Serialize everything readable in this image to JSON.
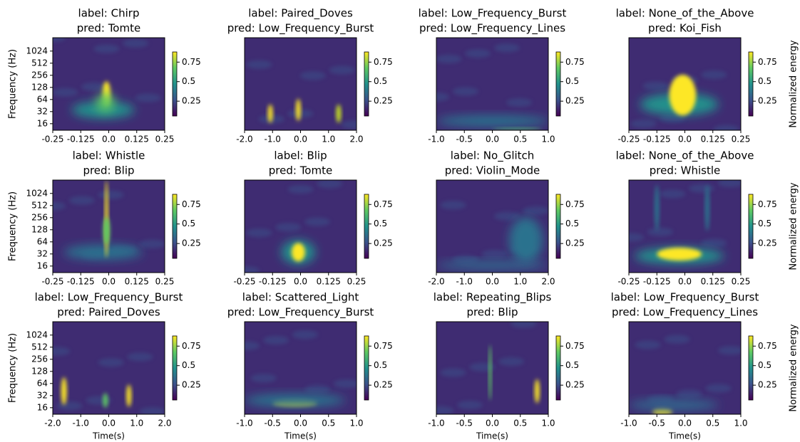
{
  "chart_data": [
    {
      "type": "heatmap",
      "title": [
        "label: Chirp",
        "pred: Tomte"
      ],
      "ylabel": "Frequency (Hz)",
      "log_y": true,
      "ylim": [
        11,
        2200
      ],
      "yticks": [
        16,
        32,
        64,
        128,
        256,
        512,
        1024
      ],
      "xlim": [
        -0.25,
        0.25
      ],
      "xticks": [
        -0.25,
        -0.125,
        {
          "value": 0,
          "label": "0.0"
        },
        0.125,
        0.25
      ],
      "colorbar": {
        "lim": [
          0.06,
          0.88
        ],
        "ticks": [
          0.25,
          0.5,
          0.75
        ]
      }
    },
    {
      "type": "heatmap",
      "title": [
        "label: Paired_Doves",
        "pred: Low_Frequency_Burst"
      ],
      "xlim": [
        -2,
        2
      ],
      "xticks": [
        {
          "value": -2,
          "label": "-2.0"
        },
        {
          "value": -1,
          "label": "-1.0"
        },
        {
          "value": 0,
          "label": "0.0"
        },
        {
          "value": 1,
          "label": "1.0"
        },
        {
          "value": 2,
          "label": "2.0"
        }
      ],
      "colorbar": {
        "lim": [
          0.06,
          0.88
        ],
        "ticks": [
          0.25,
          0.5,
          0.75
        ]
      }
    },
    {
      "type": "heatmap",
      "title": [
        "label: Low_Frequency_Burst",
        "pred: Low_Frequency_Lines"
      ],
      "xlim": [
        -1,
        1
      ],
      "xticks": [
        {
          "value": -1,
          "label": "-1.0"
        },
        -0.5,
        {
          "value": 0,
          "label": "0.0"
        },
        0.5,
        {
          "value": 1,
          "label": "1.0"
        }
      ],
      "colorbar": {
        "lim": [
          0.06,
          0.88
        ],
        "ticks": [
          0.25,
          0.5,
          0.75
        ]
      }
    },
    {
      "type": "heatmap",
      "title": [
        "label: None_of_the_Above",
        "pred: Koi_Fish"
      ],
      "xlim": [
        -0.25,
        0.25
      ],
      "xticks": [
        -0.25,
        -0.125,
        {
          "value": 0,
          "label": "0.0"
        },
        0.125,
        0.25
      ],
      "colorbar": {
        "lim": [
          0.06,
          0.88
        ],
        "ticks": [
          0.25,
          0.5,
          0.75
        ],
        "label": "Normalized energy"
      }
    },
    {
      "type": "heatmap",
      "title": [
        "label: Whistle",
        "pred: Blip"
      ],
      "ylabel": "Frequency (Hz)",
      "log_y": true,
      "ylim": [
        11,
        2200
      ],
      "yticks": [
        16,
        32,
        64,
        128,
        256,
        512,
        1024
      ],
      "xlim": [
        -0.25,
        0.25
      ],
      "xticks": [
        -0.25,
        -0.125,
        {
          "value": 0,
          "label": "0.0"
        },
        0.125,
        0.25
      ],
      "colorbar": {
        "lim": [
          0.06,
          0.88
        ],
        "ticks": [
          0.25,
          0.5,
          0.75
        ]
      }
    },
    {
      "type": "heatmap",
      "title": [
        "label: Blip",
        "pred: Tomte"
      ],
      "xlim": [
        -0.25,
        0.25
      ],
      "xticks": [
        -0.25,
        -0.125,
        {
          "value": 0,
          "label": "0.0"
        },
        0.125,
        0.25
      ],
      "colorbar": {
        "lim": [
          0.06,
          0.88
        ],
        "ticks": [
          0.25,
          0.5,
          0.75
        ]
      }
    },
    {
      "type": "heatmap",
      "title": [
        "label: No_Glitch",
        "pred: Violin_Mode"
      ],
      "xlim": [
        -2,
        2
      ],
      "xticks": [
        {
          "value": -2,
          "label": "-2.0"
        },
        {
          "value": -1,
          "label": "-1.0"
        },
        {
          "value": 0,
          "label": "0.0"
        },
        {
          "value": 1,
          "label": "1.0"
        },
        {
          "value": 2,
          "label": "2.0"
        }
      ],
      "colorbar": {
        "lim": [
          0.06,
          0.88
        ],
        "ticks": [
          0.25,
          0.5,
          0.75
        ]
      }
    },
    {
      "type": "heatmap",
      "title": [
        "label: None_of_the_Above",
        "pred: Whistle"
      ],
      "xlim": [
        -0.25,
        0.25
      ],
      "xticks": [
        -0.25,
        -0.125,
        {
          "value": 0,
          "label": "0.0"
        },
        0.125,
        0.25
      ],
      "colorbar": {
        "lim": [
          0.06,
          0.88
        ],
        "ticks": [
          0.25,
          0.5,
          0.75
        ],
        "label": "Normalized energy"
      }
    },
    {
      "type": "heatmap",
      "title": [
        "label: Low_Frequency_Burst",
        "pred: Paired_Doves"
      ],
      "ylabel": "Frequency (Hz)",
      "xlabel": "Time(s)",
      "log_y": true,
      "ylim": [
        11,
        2200
      ],
      "yticks": [
        16,
        32,
        64,
        128,
        256,
        512,
        1024
      ],
      "xlim": [
        -2,
        2
      ],
      "xticks": [
        {
          "value": -2,
          "label": "-2.0"
        },
        {
          "value": -1,
          "label": "-1.0"
        },
        {
          "value": 0,
          "label": "0.0"
        },
        {
          "value": 1,
          "label": "1.0"
        },
        {
          "value": 2,
          "label": "2.0"
        }
      ],
      "colorbar": {
        "lim": [
          0.06,
          0.88
        ],
        "ticks": [
          0.25,
          0.5,
          0.75
        ]
      }
    },
    {
      "type": "heatmap",
      "title": [
        "label: Scattered_Light",
        "pred: Low_Frequency_Burst"
      ],
      "xlabel": "Time(s)",
      "xlim": [
        -1,
        1
      ],
      "xticks": [
        {
          "value": -1,
          "label": "-1.0"
        },
        -0.5,
        {
          "value": 0,
          "label": "0.0"
        },
        0.5,
        {
          "value": 1,
          "label": "1.0"
        }
      ],
      "colorbar": {
        "lim": [
          0.06,
          0.88
        ],
        "ticks": [
          0.25,
          0.5,
          0.75
        ]
      }
    },
    {
      "type": "heatmap",
      "title": [
        "label: Repeating_Blips",
        "pred: Blip"
      ],
      "xlabel": "Time(s)",
      "xlim": [
        -1,
        1
      ],
      "xticks": [
        {
          "value": -1,
          "label": "-1.0"
        },
        -0.5,
        {
          "value": 0,
          "label": "0.0"
        },
        0.5,
        {
          "value": 1,
          "label": "1.0"
        }
      ],
      "colorbar": {
        "lim": [
          0.06,
          0.88
        ],
        "ticks": [
          0.25,
          0.5,
          0.75
        ]
      }
    },
    {
      "type": "heatmap",
      "title": [
        "label: Low_Frequency_Burst",
        "pred: Low_Frequency_Lines"
      ],
      "xlabel": "Time(s)",
      "xlim": [
        -1,
        1
      ],
      "xticks": [
        {
          "value": -1,
          "label": "-1.0"
        },
        -0.5,
        {
          "value": 0,
          "label": "0.0"
        },
        0.5,
        {
          "value": 1,
          "label": "1.0"
        }
      ],
      "colorbar": {
        "lim": [
          0.06,
          0.88
        ],
        "ticks": [
          0.25,
          0.5,
          0.75
        ],
        "label": "Normalized energy"
      }
    }
  ]
}
